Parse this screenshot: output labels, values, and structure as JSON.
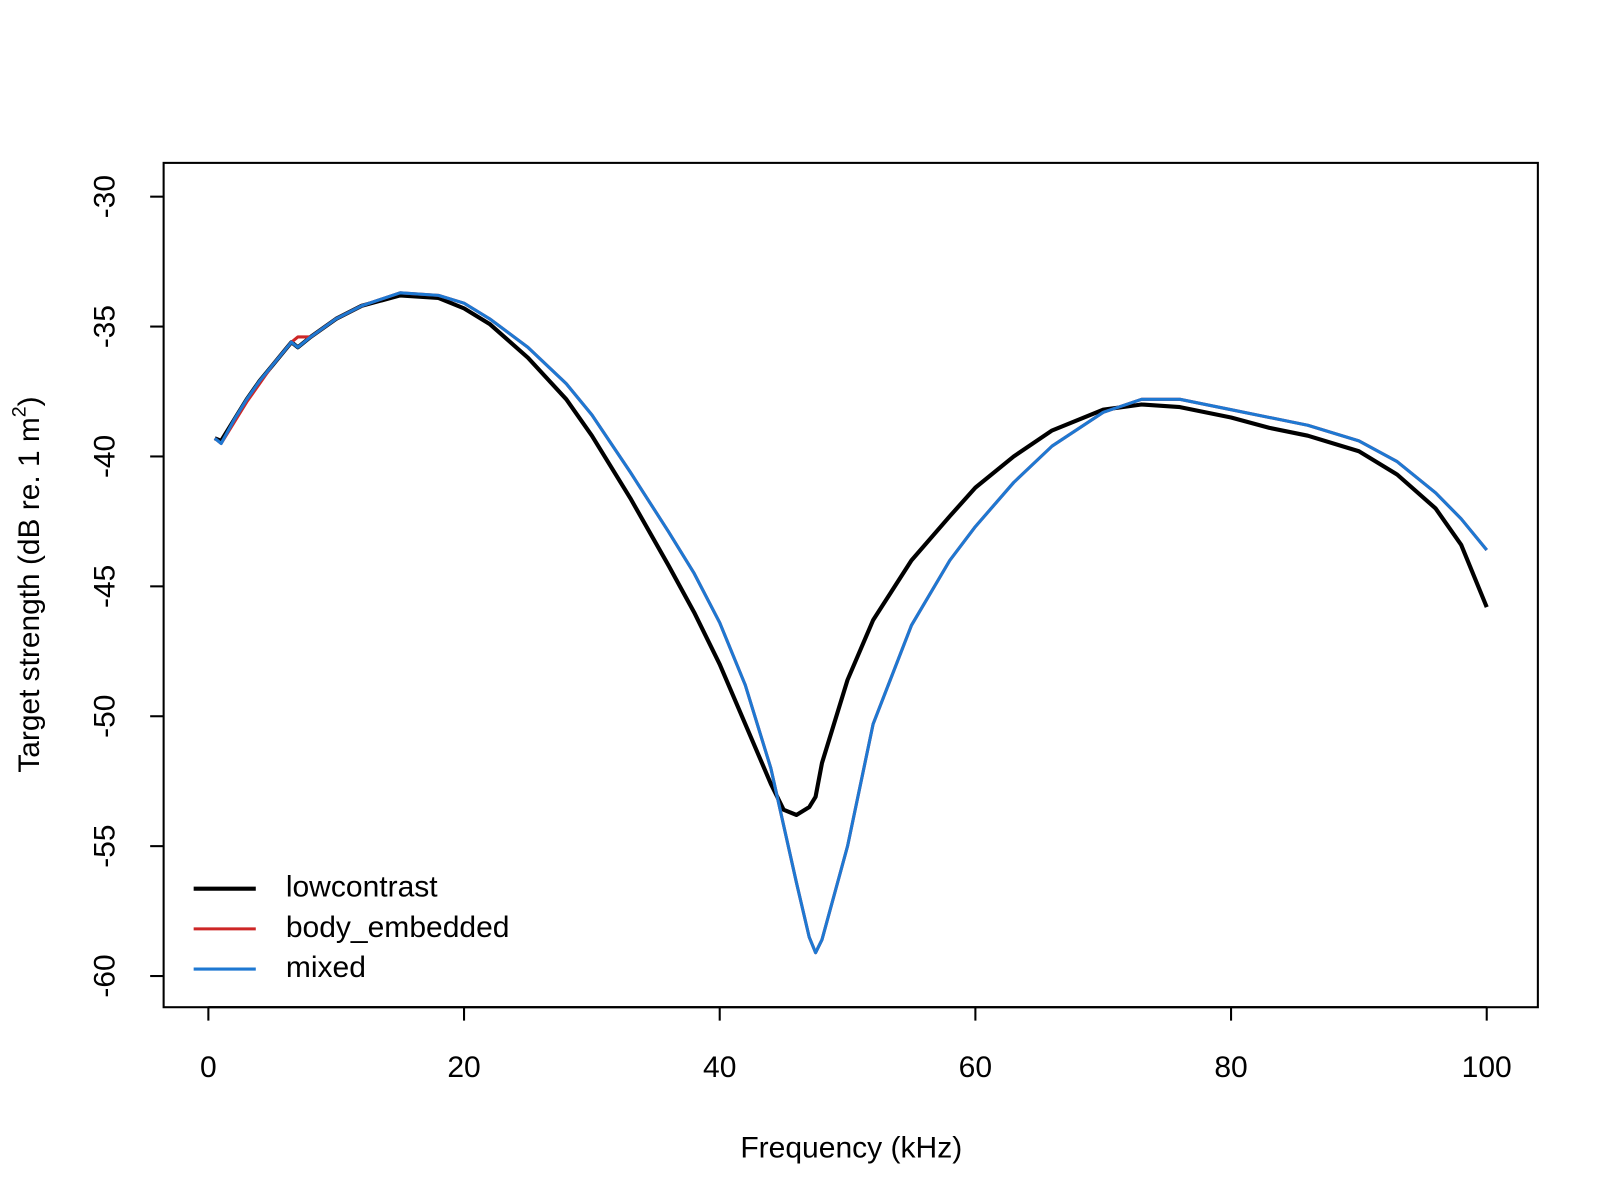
{
  "chart_data": {
    "type": "line",
    "x_label": "Frequency (kHz)",
    "y_label": {
      "text": "Target strength (dB re. 1 m",
      "superscript": "2",
      "suffix": ")"
    },
    "x": [
      0.5,
      1,
      2,
      3,
      4,
      5,
      6,
      6.5,
      7,
      8,
      10,
      12,
      15,
      18,
      20,
      22,
      25,
      28,
      30,
      33,
      36,
      38,
      40,
      42,
      44,
      45,
      46,
      47,
      47.5,
      48,
      50,
      52,
      55,
      58,
      60,
      63,
      66,
      70,
      73,
      76,
      80,
      83,
      86,
      90,
      93,
      96,
      98,
      100
    ],
    "series": [
      {
        "name": "lowcontrast",
        "color": "#000000",
        "width": 4,
        "values": [
          -39.3,
          -39.4,
          -38.6,
          -37.8,
          -37.1,
          -36.5,
          -35.9,
          -35.6,
          -35.8,
          -35.4,
          -34.7,
          -34.2,
          -33.8,
          -33.9,
          -34.3,
          -34.9,
          -36.2,
          -37.8,
          -39.2,
          -41.6,
          -44.2,
          -46.0,
          -48.0,
          -50.3,
          -52.6,
          -53.6,
          -53.8,
          -53.5,
          -53.1,
          -51.8,
          -48.6,
          -46.3,
          -44.0,
          -42.3,
          -41.2,
          -40.0,
          -39.0,
          -38.2,
          -38.0,
          -38.1,
          -38.5,
          -38.9,
          -39.2,
          -39.8,
          -40.7,
          -42.0,
          -43.4,
          -45.8
        ]
      },
      {
        "name": "body_embedded",
        "color": "#cd2626",
        "width": 3,
        "values": [
          -39.3,
          -39.5,
          -38.7,
          -37.9,
          -37.2,
          -36.5,
          -35.9,
          -35.6,
          -35.4,
          -35.4,
          -34.7,
          -34.2,
          -33.7,
          -33.8,
          -34.1,
          -34.7,
          -35.8,
          -37.2,
          -38.4,
          -40.6,
          -42.9,
          -44.5,
          -46.4,
          -48.8,
          -52.0,
          -54.2,
          -56.4,
          -58.5,
          -59.1,
          -58.6,
          -55.0,
          -50.3,
          -46.5,
          -44.0,
          -42.7,
          -41.0,
          -39.6,
          -38.3,
          -37.8,
          -37.8,
          -38.2,
          -38.5,
          -38.8,
          -39.4,
          -40.2,
          -41.4,
          -42.4,
          -43.6
        ]
      },
      {
        "name": "mixed",
        "color": "#1e78d2",
        "width": 3,
        "values": [
          -39.3,
          -39.5,
          -38.6,
          -37.8,
          -37.1,
          -36.5,
          -35.9,
          -35.6,
          -35.8,
          -35.4,
          -34.7,
          -34.2,
          -33.7,
          -33.8,
          -34.1,
          -34.7,
          -35.8,
          -37.2,
          -38.4,
          -40.6,
          -42.9,
          -44.5,
          -46.4,
          -48.8,
          -52.0,
          -54.2,
          -56.4,
          -58.5,
          -59.1,
          -58.6,
          -55.0,
          -50.3,
          -46.5,
          -44.0,
          -42.7,
          -41.0,
          -39.6,
          -38.3,
          -37.8,
          -37.8,
          -38.2,
          -38.5,
          -38.8,
          -39.4,
          -40.2,
          -41.4,
          -42.4,
          -43.6
        ]
      }
    ],
    "xlim": [
      -3.5,
      104
    ],
    "xticks": [
      0,
      20,
      40,
      60,
      80,
      100
    ],
    "ylim": [
      -61.2,
      -28.7
    ],
    "yticks": [
      -60,
      -55,
      -50,
      -45,
      -40,
      -35,
      -30
    ],
    "legend": "bottom-left"
  }
}
